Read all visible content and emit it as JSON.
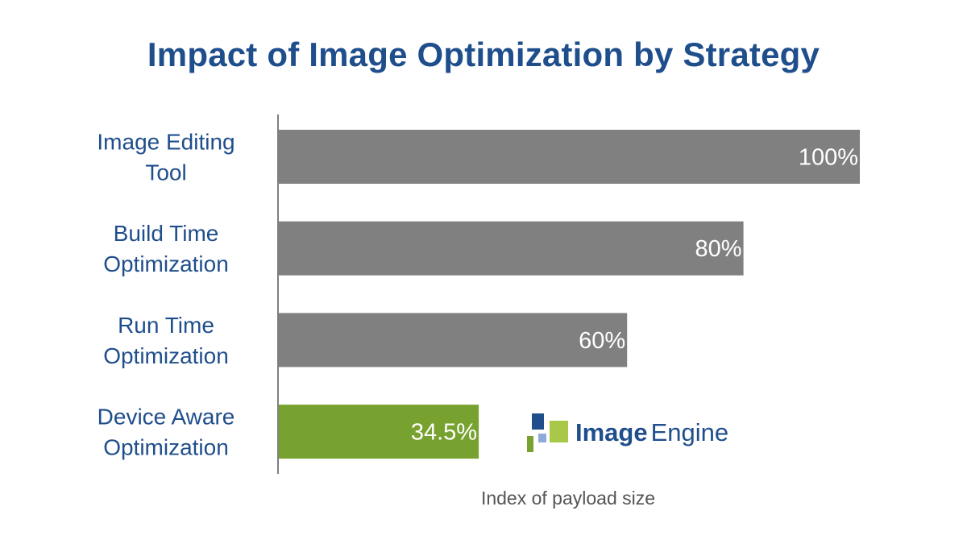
{
  "chart_data": {
    "type": "bar",
    "orientation": "horizontal",
    "title": "Impact of Image Optimization by Strategy",
    "xlabel": "Index of payload size",
    "ylabel": "",
    "xlim": [
      0,
      100
    ],
    "grid": false,
    "legend": "none",
    "categories": [
      [
        "Image Editing",
        "Tool"
      ],
      [
        "Build Time",
        "Optimization"
      ],
      [
        "Run Time",
        "Optimization"
      ],
      [
        "Device Aware",
        "Optimization"
      ]
    ],
    "values": [
      100,
      80,
      60,
      34.5
    ],
    "data_labels": [
      "100%",
      "80%",
      "60%",
      "34.5%"
    ],
    "colors": [
      "#808080",
      "#808080",
      "#808080",
      "#78a22f"
    ]
  },
  "theme": {
    "title_color": "#1f4e8c",
    "category_label_color": "#1f4e8c",
    "bar_label_color": "#ffffff",
    "axis_line_color": "#7f7f7f",
    "xlabel_color": "#555555"
  },
  "logo": {
    "word_bold": "Image",
    "word_light": "Engine",
    "icon": "image-engine-logo-icon",
    "colors": {
      "dark_blue": "#1f4e8c",
      "light_blue": "#8eaadb",
      "green": "#78a22f",
      "light_green": "#a9c84a"
    }
  }
}
